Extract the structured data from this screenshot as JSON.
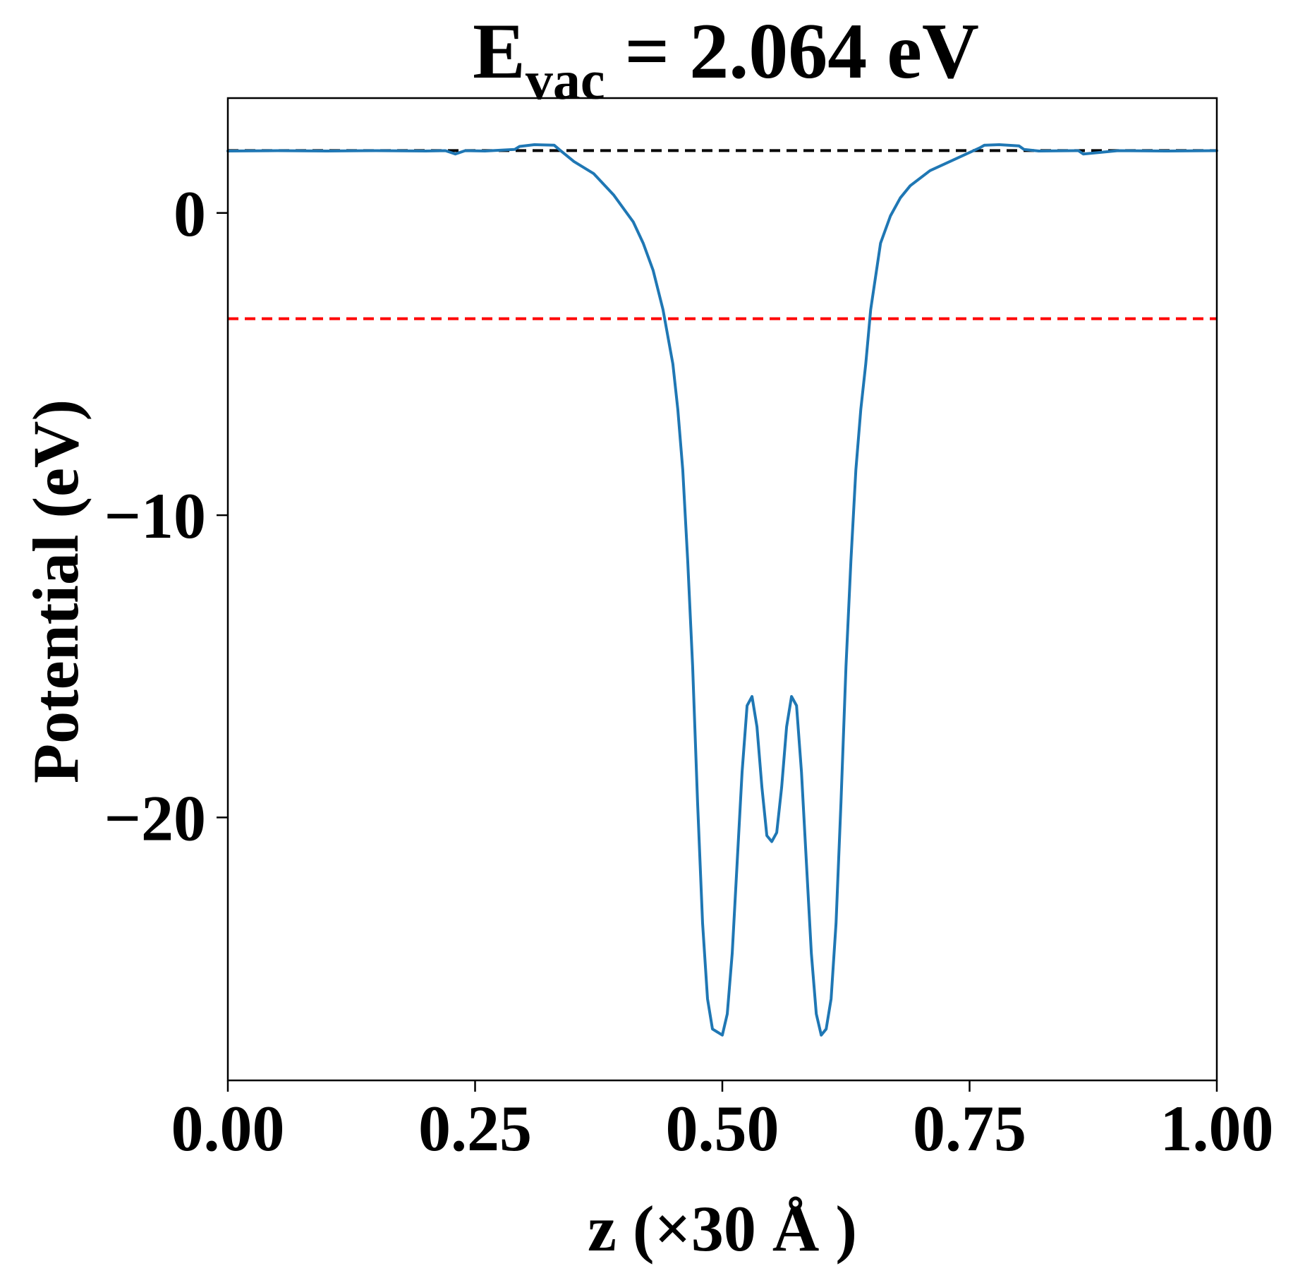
{
  "chart_data": {
    "type": "line",
    "title": {
      "main": "E",
      "subscript": "vac",
      "rest": " = 2.064 eV"
    },
    "xlabel": "z (×30 Å )",
    "ylabel": "Potential (eV)",
    "xlim": [
      0,
      1
    ],
    "ylim": [
      -28.7,
      3.8
    ],
    "grid": false,
    "xticks": [
      {
        "value": 0.0,
        "label": "0.00"
      },
      {
        "value": 0.25,
        "label": "0.25"
      },
      {
        "value": 0.5,
        "label": "0.50"
      },
      {
        "value": 0.75,
        "label": "0.75"
      },
      {
        "value": 1.0,
        "label": "1.00"
      }
    ],
    "yticks": [
      {
        "value": 0,
        "label": "0"
      },
      {
        "value": -10,
        "label": "−10"
      },
      {
        "value": -20,
        "label": "−20"
      }
    ],
    "hlines": [
      {
        "y": 2.064,
        "color": "#000000",
        "style": "dashed"
      },
      {
        "y": -3.5,
        "color": "#ff0000",
        "style": "dashed"
      }
    ],
    "series": [
      {
        "color": "#1f77b4",
        "x": [
          0.0,
          0.05,
          0.1,
          0.15,
          0.2,
          0.22,
          0.23,
          0.24,
          0.26,
          0.29,
          0.295,
          0.31,
          0.33,
          0.335,
          0.35,
          0.37,
          0.39,
          0.41,
          0.42,
          0.43,
          0.44,
          0.45,
          0.455,
          0.46,
          0.465,
          0.47,
          0.475,
          0.48,
          0.485,
          0.49,
          0.495,
          0.5,
          0.505,
          0.51,
          0.515,
          0.52,
          0.525,
          0.53,
          0.535,
          0.54,
          0.545,
          0.55,
          0.555,
          0.56,
          0.565,
          0.57,
          0.575,
          0.58,
          0.585,
          0.59,
          0.595,
          0.6,
          0.605,
          0.61,
          0.615,
          0.62,
          0.625,
          0.63,
          0.635,
          0.64,
          0.645,
          0.65,
          0.66,
          0.67,
          0.68,
          0.69,
          0.71,
          0.73,
          0.75,
          0.76,
          0.765,
          0.78,
          0.8,
          0.805,
          0.82,
          0.86,
          0.865,
          0.9,
          0.95,
          1.0
        ],
        "y": [
          2.05,
          2.06,
          2.05,
          2.06,
          2.05,
          2.06,
          1.95,
          2.06,
          2.05,
          2.1,
          2.2,
          2.26,
          2.24,
          2.1,
          1.7,
          1.3,
          0.6,
          -0.3,
          -1.0,
          -1.9,
          -3.2,
          -5.0,
          -6.5,
          -8.5,
          -11.5,
          -15.0,
          -19.5,
          -23.5,
          -26.0,
          -27.0,
          -27.1,
          -27.2,
          -26.5,
          -24.5,
          -21.5,
          -18.5,
          -16.3,
          -16.0,
          -17.0,
          -19.0,
          -20.6,
          -20.8,
          -20.5,
          -19.0,
          -17.0,
          -16.0,
          -16.3,
          -18.5,
          -21.5,
          -24.5,
          -26.5,
          -27.2,
          -27.0,
          -26.0,
          -23.5,
          -19.5,
          -15.0,
          -11.5,
          -8.5,
          -6.5,
          -5.0,
          -3.2,
          -1.0,
          -0.1,
          0.5,
          0.9,
          1.4,
          1.7,
          2.0,
          2.15,
          2.24,
          2.26,
          2.22,
          2.1,
          2.05,
          2.06,
          1.95,
          2.06,
          2.05,
          2.06
        ]
      }
    ]
  }
}
